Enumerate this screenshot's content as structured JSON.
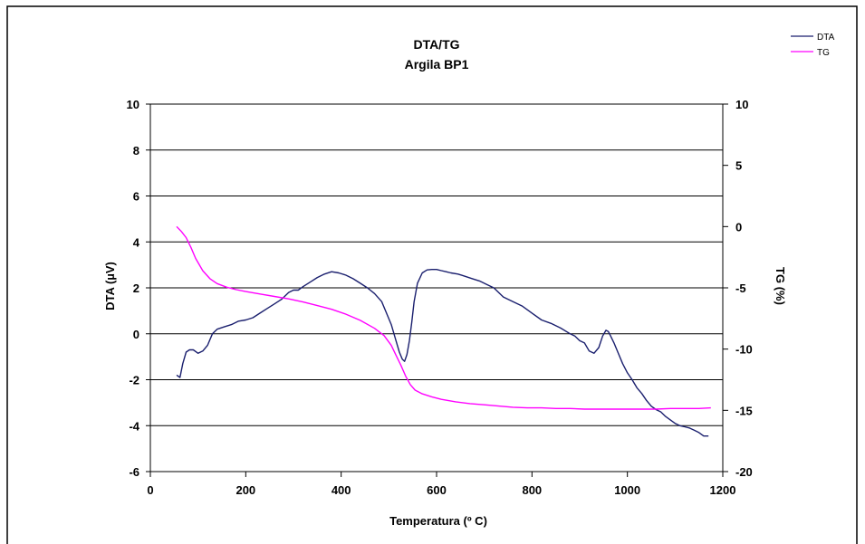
{
  "chart_data": {
    "type": "line",
    "title": "DTA/TG",
    "subtitle": "Argila BP1",
    "xlabel": "Temperatura (º C)",
    "ylabel": "DTA (µV)",
    "y2label": "TG (%)",
    "xlim": [
      0,
      1200
    ],
    "ylim": [
      -6,
      10
    ],
    "y2lim": [
      -20,
      10
    ],
    "xticks": [
      0,
      200,
      400,
      600,
      800,
      1000,
      1200
    ],
    "yticks": [
      -6,
      -4,
      -2,
      0,
      2,
      4,
      6,
      8,
      10
    ],
    "y2ticks": [
      -20,
      -15,
      -10,
      -5,
      0,
      5,
      10
    ],
    "grid": true,
    "legend_position": "top-right",
    "series": [
      {
        "name": "DTA",
        "axis": "left",
        "color": "#1a1f6e",
        "x": [
          55,
          62,
          68,
          75,
          82,
          90,
          100,
          110,
          120,
          130,
          140,
          155,
          170,
          185,
          200,
          215,
          230,
          245,
          260,
          275,
          290,
          300,
          310,
          320,
          335,
          350,
          365,
          380,
          395,
          410,
          425,
          440,
          455,
          470,
          485,
          495,
          505,
          515,
          522,
          528,
          533,
          538,
          543,
          548,
          553,
          560,
          570,
          580,
          590,
          600,
          610,
          620,
          630,
          645,
          660,
          675,
          690,
          705,
          720,
          740,
          760,
          780,
          800,
          820,
          840,
          860,
          880,
          890,
          900,
          910,
          920,
          930,
          940,
          948,
          955,
          960,
          965,
          972,
          980,
          990,
          1000,
          1010,
          1020,
          1030,
          1040,
          1050,
          1060,
          1070,
          1080,
          1090,
          1100,
          1110,
          1120,
          1130,
          1140,
          1150,
          1160,
          1170
        ],
        "y": [
          -1.8,
          -1.9,
          -1.3,
          -0.8,
          -0.7,
          -0.7,
          -0.85,
          -0.75,
          -0.5,
          0.0,
          0.2,
          0.3,
          0.4,
          0.55,
          0.6,
          0.7,
          0.9,
          1.1,
          1.3,
          1.5,
          1.8,
          1.9,
          1.9,
          2.05,
          2.25,
          2.45,
          2.6,
          2.7,
          2.65,
          2.55,
          2.4,
          2.2,
          2.0,
          1.75,
          1.4,
          0.9,
          0.4,
          -0.3,
          -0.8,
          -1.1,
          -1.2,
          -0.9,
          -0.3,
          0.5,
          1.4,
          2.2,
          2.65,
          2.78,
          2.8,
          2.8,
          2.75,
          2.7,
          2.65,
          2.6,
          2.5,
          2.4,
          2.3,
          2.15,
          2.0,
          1.6,
          1.4,
          1.2,
          0.9,
          0.6,
          0.45,
          0.25,
          0.0,
          -0.1,
          -0.3,
          -0.4,
          -0.75,
          -0.85,
          -0.6,
          -0.1,
          0.15,
          0.1,
          -0.1,
          -0.4,
          -0.8,
          -1.3,
          -1.7,
          -2.0,
          -2.35,
          -2.6,
          -2.9,
          -3.15,
          -3.3,
          -3.4,
          -3.6,
          -3.75,
          -3.9,
          -4.0,
          -4.05,
          -4.1,
          -4.2,
          -4.3,
          -4.45,
          -4.45
        ]
      },
      {
        "name": "TG",
        "axis": "right",
        "color": "#ff00ff",
        "x": [
          55,
          65,
          75,
          85,
          95,
          110,
          125,
          140,
          160,
          180,
          200,
          230,
          260,
          290,
          320,
          350,
          380,
          410,
          440,
          470,
          490,
          505,
          515,
          525,
          535,
          545,
          555,
          570,
          590,
          610,
          640,
          670,
          700,
          730,
          760,
          790,
          820,
          850,
          880,
          910,
          940,
          970,
          1000,
          1030,
          1060,
          1090,
          1120,
          1150,
          1175
        ],
        "y": [
          0.0,
          -0.4,
          -0.9,
          -1.7,
          -2.6,
          -3.6,
          -4.25,
          -4.65,
          -4.95,
          -5.15,
          -5.3,
          -5.5,
          -5.7,
          -5.9,
          -6.15,
          -6.45,
          -6.75,
          -7.15,
          -7.65,
          -8.3,
          -8.9,
          -9.7,
          -10.5,
          -11.3,
          -12.2,
          -12.9,
          -13.35,
          -13.65,
          -13.9,
          -14.1,
          -14.3,
          -14.45,
          -14.55,
          -14.65,
          -14.75,
          -14.8,
          -14.8,
          -14.85,
          -14.85,
          -14.9,
          -14.9,
          -14.9,
          -14.9,
          -14.9,
          -14.9,
          -14.85,
          -14.85,
          -14.85,
          -14.8
        ]
      }
    ]
  }
}
